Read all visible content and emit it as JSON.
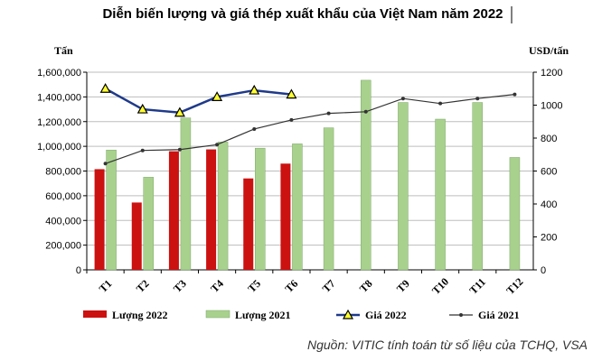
{
  "chart_data": {
    "type": "bar",
    "title": "Diễn biến lượng và giá thép xuất khẩu của Việt Nam năm 2022",
    "left_unit": "Tấn",
    "right_unit": "USD/tấn",
    "categories": [
      "T1",
      "T2",
      "T3",
      "T4",
      "T5",
      "T6",
      "T7",
      "T8",
      "T9",
      "T10",
      "T11",
      "T12"
    ],
    "ylim_left": [
      0,
      1600000
    ],
    "yticks_left": [
      "0",
      "200,000",
      "400,000",
      "600,000",
      "800,000",
      "1,000,000",
      "1,200,000",
      "1,400,000",
      "1,600,000"
    ],
    "ylim_right": [
      0,
      1200
    ],
    "yticks_right": [
      "0",
      "200",
      "400",
      "600",
      "800",
      "1000",
      "1200"
    ],
    "grid": true,
    "legend_position": "bottom",
    "series": [
      {
        "name": "Lượng 2022",
        "kind": "bar",
        "axis": "left",
        "color": "#cc1111",
        "values": [
          815000,
          545000,
          960000,
          975000,
          740000,
          860000,
          null,
          null,
          null,
          null,
          null,
          null
        ]
      },
      {
        "name": "Lượng 2021",
        "kind": "bar",
        "axis": "left",
        "color": "#a9d18e",
        "values": [
          970000,
          750000,
          1230000,
          1035000,
          985000,
          1020000,
          1150000,
          1535000,
          1355000,
          1220000,
          1355000,
          910000
        ]
      },
      {
        "name": "Giá 2022",
        "kind": "line",
        "axis": "right",
        "color": "#1f3a8a",
        "marker": "triangle",
        "values": [
          1100,
          975,
          955,
          1050,
          1090,
          1065,
          null,
          null,
          null,
          null,
          null,
          null
        ]
      },
      {
        "name": "Giá 2021",
        "kind": "line",
        "axis": "right",
        "color": "#333333",
        "marker": "dot",
        "values": [
          645,
          725,
          730,
          760,
          855,
          910,
          950,
          960,
          1040,
          1010,
          1040,
          1065
        ]
      }
    ]
  },
  "source": "Nguồn: VITIC tính toán từ số liệu của TCHQ, VSA"
}
